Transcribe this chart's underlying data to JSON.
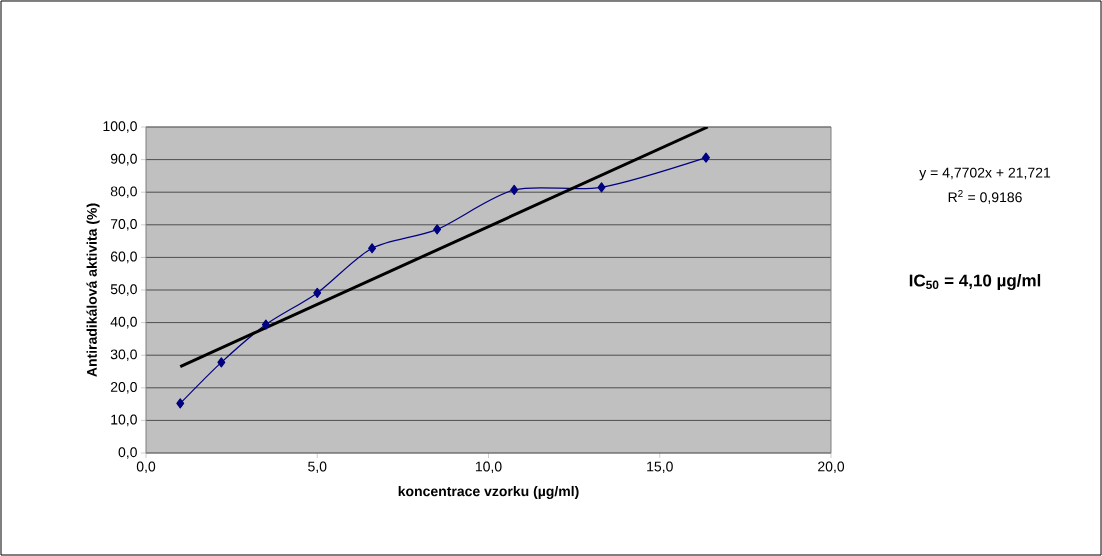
{
  "chart_data": {
    "type": "line",
    "xlabel": "koncentrace vzorku (µg/ml)",
    "ylabel": "Antiradikálová aktivita (%)",
    "series": [
      {
        "color": "#000080",
        "marker": "diamond",
        "x": [
          1.0,
          2.2,
          3.5,
          5.0,
          6.6,
          8.5,
          10.75,
          13.3,
          16.35
        ],
        "values": [
          15.2,
          27.8,
          39.4,
          49.1,
          62.8,
          68.6,
          80.7,
          81.5,
          90.6
        ]
      },
      {
        "color": "#000000",
        "marker": "none",
        "x": [
          1.0,
          16.4
        ],
        "values": [
          26.5,
          100.0
        ]
      }
    ],
    "xlim": [
      0,
      20
    ],
    "ylim": [
      0,
      100
    ],
    "xticks": [
      {
        "value": 0,
        "label": "0,0"
      },
      {
        "value": 5,
        "label": "5,0"
      },
      {
        "value": 10,
        "label": "10,0"
      },
      {
        "value": 15,
        "label": "15,0"
      },
      {
        "value": 20,
        "label": "20,0"
      }
    ],
    "yticks": [
      {
        "value": 0,
        "label": "0,0"
      },
      {
        "value": 10,
        "label": "10,0"
      },
      {
        "value": 20,
        "label": "20,0"
      },
      {
        "value": 30,
        "label": "30,0"
      },
      {
        "value": 40,
        "label": "40,0"
      },
      {
        "value": 50,
        "label": "50,0"
      },
      {
        "value": 60,
        "label": "60,0"
      },
      {
        "value": 70,
        "label": "70,0"
      },
      {
        "value": 80,
        "label": "80,0"
      },
      {
        "value": 90,
        "label": "90,0"
      },
      {
        "value": 100,
        "label": "100,0"
      }
    ],
    "grid": "y",
    "annotations": [
      "y = 4,7702x + 21,721",
      "R$^{2}$ = 0,9186",
      "IC$_{50}$ = 4,10 µg/ml"
    ]
  }
}
